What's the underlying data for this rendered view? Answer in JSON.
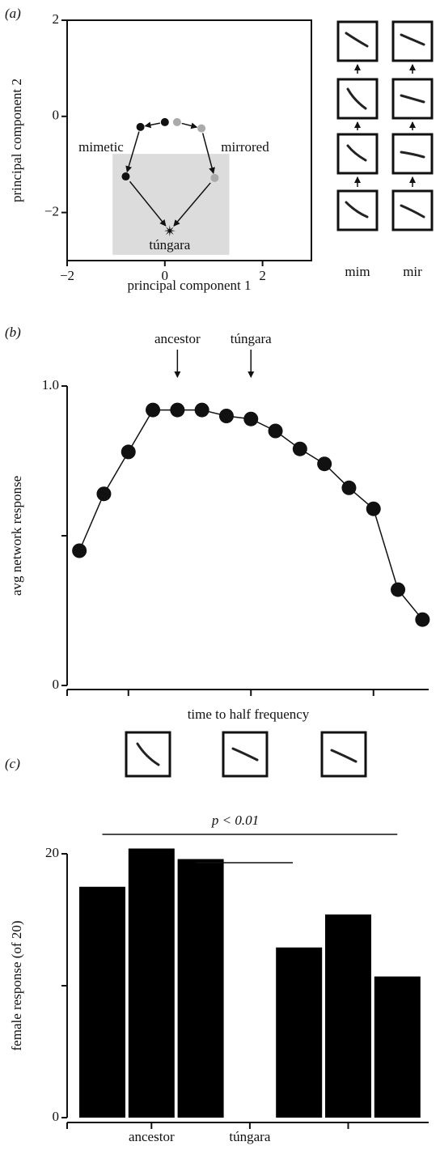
{
  "chart_data": [
    {
      "type": "scatter",
      "panel": "(a)",
      "xlabel": "principal component 1",
      "ylabel": "principal component 2",
      "xlim": [
        -2,
        3
      ],
      "ylim": [
        -3,
        2
      ],
      "xticks": [
        {
          "value": -2,
          "label": "−2"
        },
        0,
        2
      ],
      "yticks": [
        {
          "value": -2,
          "label": "−2"
        },
        0,
        2
      ],
      "shaded_region": {
        "xlim": [
          -1.07,
          1.32
        ],
        "ylim": [
          -2.88,
          -0.78
        ],
        "color": "#dcdcdc"
      },
      "series": [
        {
          "name": "mimetic",
          "color": "#111111",
          "x": [
            -0.8,
            -0.5,
            0
          ],
          "values": [
            -1.25,
            -0.22,
            -0.12
          ]
        },
        {
          "name": "mirrored",
          "color": "#aaaaaa",
          "x": [
            0.25,
            0.75,
            1.02
          ],
          "values": [
            -0.12,
            -0.25,
            -1.28
          ]
        },
        {
          "name": "túngara",
          "color": "#111111",
          "x": [
            0.1
          ],
          "values": [
            -2.38
          ]
        }
      ],
      "thumbnail_labels": [
        "mim",
        "mir"
      ]
    },
    {
      "type": "line",
      "panel": "(b)",
      "xlabel": "time to half frequency",
      "ylabel": "avg network response",
      "x": [
        1,
        2,
        3,
        4,
        5,
        6,
        7,
        8,
        9,
        10,
        11,
        12,
        13,
        14,
        15
      ],
      "values": [
        0.45,
        0.64,
        0.78,
        0.92,
        0.92,
        0.92,
        0.9,
        0.89,
        0.85,
        0.79,
        0.74,
        0.66,
        0.59,
        0.32,
        0.22
      ],
      "color": "#111111",
      "xlim": [
        0.5,
        15.5
      ],
      "xtick_marks": [
        3,
        8,
        13
      ],
      "ylim": [
        0,
        1.0
      ],
      "yticks": [
        0,
        {
          "value": 1.0,
          "label": "1.0"
        }
      ],
      "ytick_marks": [
        0.5
      ],
      "annotations": [
        {
          "text": "ancestor",
          "x": 5
        },
        {
          "text": "túngara",
          "x": 8
        }
      ]
    },
    {
      "type": "bar",
      "panel": "(c)",
      "ylabel": "female response (of 20)",
      "categories": [
        null,
        "ancestor",
        null,
        "túngara",
        null,
        null,
        null
      ],
      "values": [
        17.5,
        20.4,
        19.6,
        null,
        12.9,
        15.4,
        10.7
      ],
      "color": "#000000",
      "category_ticks": [
        1,
        3,
        5
      ],
      "ylim": [
        0,
        20
      ],
      "yticks": [
        0,
        20
      ],
      "ytick_marks": [
        10
      ],
      "significance": "p < 0.01"
    }
  ]
}
